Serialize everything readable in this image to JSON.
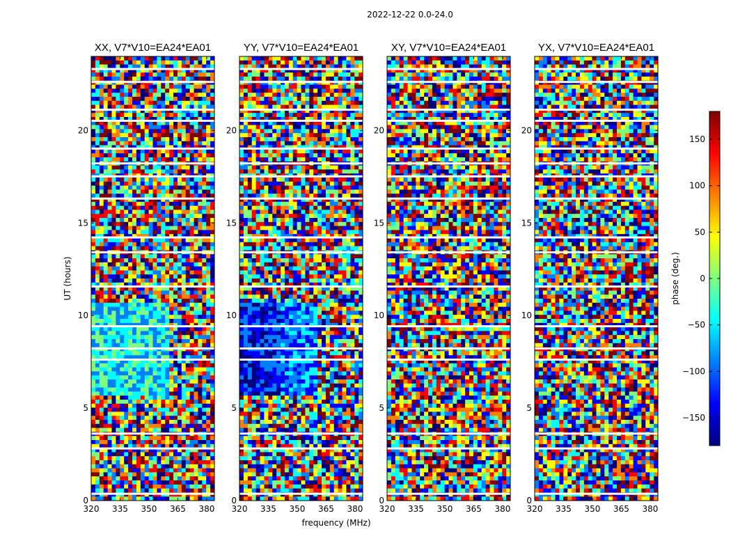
{
  "figure": {
    "suptitle": "2022-12-22 0.0-24.0"
  },
  "chart_data": {
    "type": "heatmap",
    "title": "2022-12-22 0.0-24.0",
    "xlabel": "frequency (MHz)",
    "ylabel": "UT (hours)",
    "xlim": [
      320,
      384
    ],
    "ylim": [
      0,
      24
    ],
    "x_ticks": [
      "320",
      "335",
      "350",
      "365",
      "380"
    ],
    "y_ticks": [
      "0",
      "5",
      "10",
      "15",
      "20"
    ],
    "colorbar": {
      "label": "phase (deg.)",
      "range": [
        -180,
        180
      ],
      "ticks": [
        "150",
        "100",
        "50",
        "0",
        "−50",
        "−100",
        "−150"
      ],
      "colormap": "jet",
      "colors": [
        "#00007f",
        "#0000ff",
        "#007fff",
        "#00ffff",
        "#7fff7f",
        "#ffff00",
        "#ff7f00",
        "#ff0000",
        "#7f0000"
      ]
    },
    "panels": [
      {
        "title": "XX, V7*V10=EA24*EA01"
      },
      {
        "title": "YY, V7*V10=EA24*EA01"
      },
      {
        "title": "XY, V7*V10=EA24*EA01"
      },
      {
        "title": "YX, V7*V10=EA24*EA01"
      }
    ],
    "flagged_ut_hours": [
      0.35,
      2.8,
      3.6,
      7.6,
      8.2,
      9.4,
      11.55,
      13.4,
      14.2,
      16.3,
      17.5,
      18.2,
      19.0,
      20.5,
      21.1,
      22.6,
      23.3
    ]
  }
}
